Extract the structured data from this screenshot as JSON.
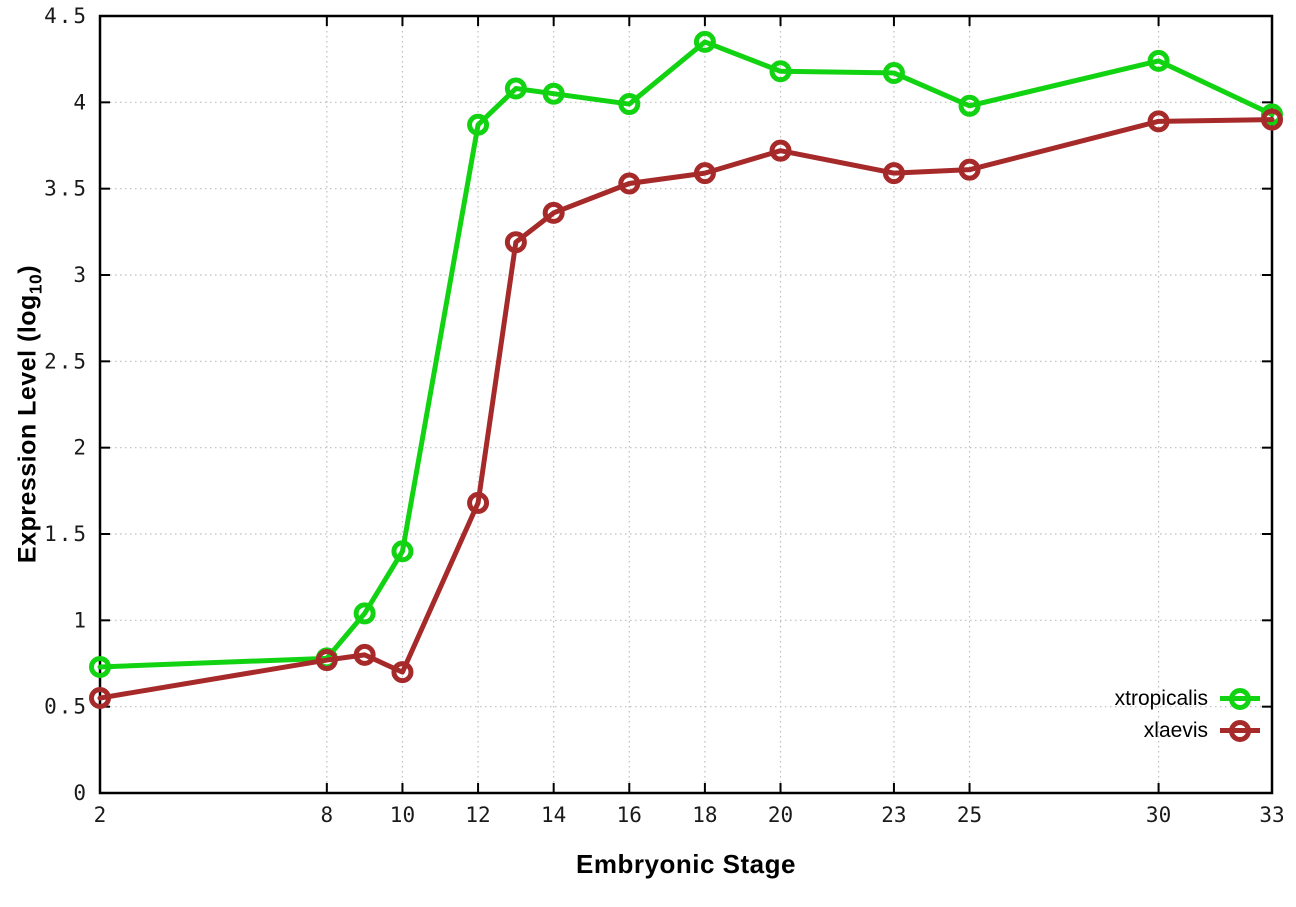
{
  "chart_data": {
    "type": "line",
    "title": "",
    "xlabel": "Embryonic Stage",
    "ylabel": {
      "main": "Expression Level (log",
      "sub": "10",
      "end": ")"
    },
    "x_ticks": [
      2,
      8,
      10,
      12,
      14,
      16,
      18,
      20,
      23,
      25,
      30,
      33
    ],
    "x_tick_labels": [
      "2",
      "8",
      "10",
      "12",
      "14",
      "16",
      "18",
      "20",
      "23",
      "25",
      "30",
      "33"
    ],
    "y_ticks": [
      0,
      0.5,
      1,
      1.5,
      2,
      2.5,
      3,
      3.5,
      4,
      4.5
    ],
    "y_tick_labels": [
      "0",
      "0.5",
      "1",
      "1.5",
      "2",
      "2.5",
      "3",
      "3.5",
      "4",
      "4.5"
    ],
    "xlim": [
      2,
      33
    ],
    "ylim": [
      0,
      4.5
    ],
    "grid": true,
    "legend_position": "bottom-right",
    "series": [
      {
        "name": "xtropicalis",
        "color": "#12d312",
        "marker": "open-circle",
        "x": [
          2,
          8,
          9,
          10,
          12,
          13,
          14,
          16,
          18,
          20,
          23,
          25,
          30,
          33
        ],
        "values": [
          0.73,
          0.78,
          1.04,
          1.4,
          3.87,
          4.08,
          4.05,
          3.99,
          4.35,
          4.18,
          4.17,
          3.98,
          4.24,
          3.93
        ]
      },
      {
        "name": "xlaevis",
        "color": "#a62a2a",
        "marker": "open-circle",
        "x": [
          2,
          8,
          9,
          10,
          12,
          13,
          14,
          16,
          18,
          20,
          23,
          25,
          30,
          33
        ],
        "values": [
          0.55,
          0.77,
          0.8,
          0.7,
          1.68,
          3.19,
          3.36,
          3.53,
          3.59,
          3.72,
          3.59,
          3.61,
          3.89,
          3.9
        ]
      }
    ],
    "axis_color": "#000000",
    "grid_color": "#bdbdbd",
    "tick_label_color": "#1a1a1a"
  }
}
